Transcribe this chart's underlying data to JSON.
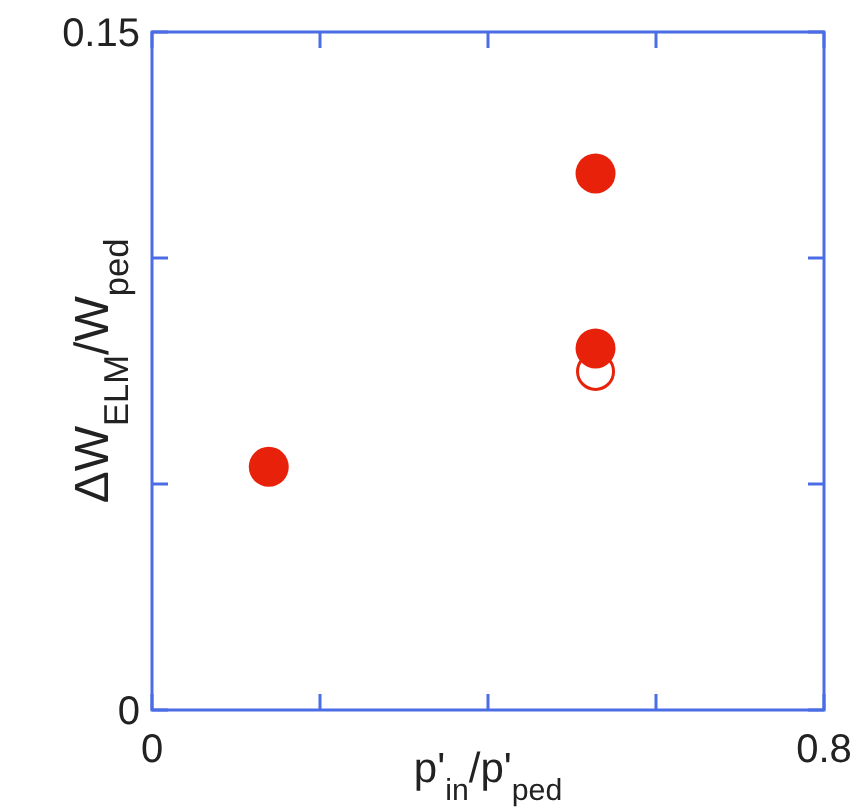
{
  "chart_data": {
    "type": "scatter",
    "xlabel": "p'$_{in}$/p'$_{ped}$",
    "ylabel": "ΔW$_{ELM}$/W$_{ped}$",
    "xlim": [
      0,
      0.8
    ],
    "xticks": [
      0,
      {
        "value": 0.2,
        "label": null
      },
      {
        "value": 0.4,
        "label": null
      },
      {
        "value": 0.6,
        "label": null
      },
      0.8
    ],
    "ylim": [
      0,
      0.15
    ],
    "yticks": [
      0,
      {
        "value": 0.05,
        "label": null
      },
      {
        "value": 0.1,
        "label": null
      },
      0.15
    ],
    "grid": false,
    "marker": "circle",
    "x": [
      0.139,
      0.528
    ],
    "series": [
      {
        "color": "#e8220a",
        "values": [
          0.0538,
          0.1187
        ]
      },
      {
        "color": "#e8220a",
        "values": [
          null,
          0.08
        ]
      },
      {
        "color": "#e8220a",
        "values": [
          null,
          0.0749
        ]
      }
    ]
  }
}
